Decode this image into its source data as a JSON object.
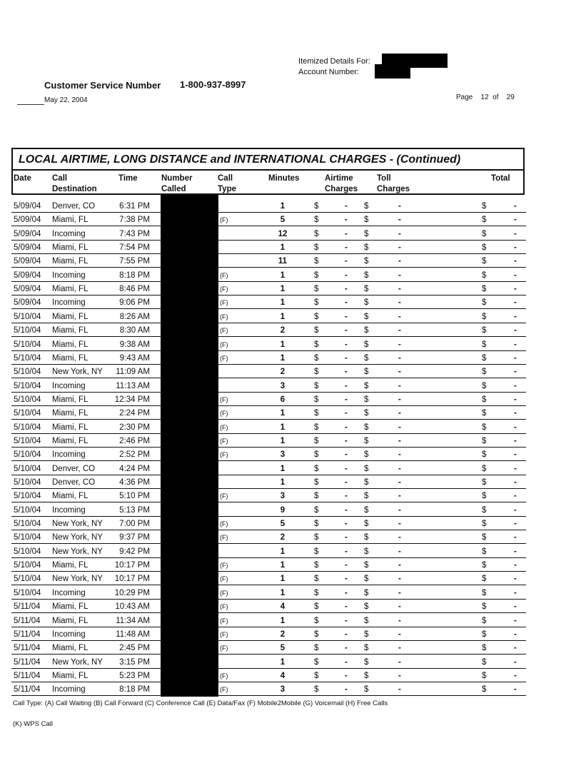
{
  "header": {
    "itemized_label": "Itemized Details For:",
    "account_label": "Account Number:",
    "cs_label": "Customer Service Number",
    "cs_number": "1-800-937-8997",
    "date": "May 22, 2004",
    "page_label": "Page",
    "page_num": "12",
    "page_of": "of",
    "page_total": "29"
  },
  "table": {
    "title": "LOCAL AIRTIME, LONG DISTANCE and INTERNATIONAL CHARGES  - (Continued)",
    "columns": [
      "Date",
      "Call\nDestination",
      "Time",
      "Number\nCalled",
      "Call\nType",
      "Minutes",
      "Airtime\nCharges",
      "Toll\nCharges",
      "Total"
    ],
    "currency": "$",
    "dash": "-",
    "rows": [
      [
        "5/09/04",
        "Denver, CO",
        "6:31 PM",
        "",
        "1"
      ],
      [
        "5/09/04",
        "Miami, FL",
        "7:38 PM",
        "(F)",
        "5"
      ],
      [
        "5/09/04",
        "Incoming",
        "7:43 PM",
        "",
        "12"
      ],
      [
        "5/09/04",
        "Miami, FL",
        "7:54 PM",
        "",
        "1"
      ],
      [
        "5/09/04",
        "Miami, FL",
        "7:55 PM",
        "",
        "11"
      ],
      [
        "5/09/04",
        "Incoming",
        "8:18 PM",
        "(F)",
        "1"
      ],
      [
        "5/09/04",
        "Miami, FL",
        "8:46 PM",
        "(F)",
        "1"
      ],
      [
        "5/09/04",
        "Incoming",
        "9:06 PM",
        "(F)",
        "1"
      ],
      [
        "5/10/04",
        "Miami, FL",
        "8:26 AM",
        "(F)",
        "1"
      ],
      [
        "5/10/04",
        "Miami, FL",
        "8:30 AM",
        "(F)",
        "2"
      ],
      [
        "5/10/04",
        "Miami, FL",
        "9:38 AM",
        "(F)",
        "1"
      ],
      [
        "5/10/04",
        "Miami, FL",
        "9:43 AM",
        "(F)",
        "1"
      ],
      [
        "5/10/04",
        "New York, NY",
        "11:09 AM",
        "",
        "2"
      ],
      [
        "5/10/04",
        "Incoming",
        "11:13 AM",
        "",
        "3"
      ],
      [
        "5/10/04",
        "Miami, FL",
        "12:34 PM",
        "(F)",
        "6"
      ],
      [
        "5/10/04",
        "Miami, FL",
        "2:24 PM",
        "(F)",
        "1"
      ],
      [
        "5/10/04",
        "Miami, FL",
        "2:30 PM",
        "(F)",
        "1"
      ],
      [
        "5/10/04",
        "Miami, FL",
        "2:46 PM",
        "(F)",
        "1"
      ],
      [
        "5/10/04",
        "Incoming",
        "2:52 PM",
        "(F)",
        "3"
      ],
      [
        "5/10/04",
        "Denver, CO",
        "4:24 PM",
        "",
        "1"
      ],
      [
        "5/10/04",
        "Denver, CO",
        "4:36 PM",
        "",
        "1"
      ],
      [
        "5/10/04",
        "Miami, FL",
        "5:10 PM",
        "(F)",
        "3"
      ],
      [
        "5/10/04",
        "Incoming",
        "5:13 PM",
        "",
        "9"
      ],
      [
        "5/10/04",
        "New York, NY",
        "7:00 PM",
        "(F)",
        "5"
      ],
      [
        "5/10/04",
        "New York, NY",
        "9:37 PM",
        "(F)",
        "2"
      ],
      [
        "5/10/04",
        "New York, NY",
        "9:42 PM",
        "",
        "1"
      ],
      [
        "5/10/04",
        "Miami, FL",
        "10:17 PM",
        "(F)",
        "1"
      ],
      [
        "5/10/04",
        "New York, NY",
        "10:17 PM",
        "(F)",
        "1"
      ],
      [
        "5/10/04",
        "Incoming",
        "10:29 PM",
        "(F)",
        "1"
      ],
      [
        "5/11/04",
        "Miami, FL",
        "10:43 AM",
        "(F)",
        "4"
      ],
      [
        "5/11/04",
        "Miami, FL",
        "11:34 AM",
        "(F)",
        "1"
      ],
      [
        "5/11/04",
        "Incoming",
        "11:48 AM",
        "(F)",
        "2"
      ],
      [
        "5/11/04",
        "Miami, FL",
        "2:45 PM",
        "(F)",
        "5"
      ],
      [
        "5/11/04",
        "New York, NY",
        "3:15 PM",
        "",
        "1"
      ],
      [
        "5/11/04",
        "Miami, FL",
        "5:23 PM",
        "(F)",
        "4"
      ],
      [
        "5/11/04",
        "Incoming",
        "8:18 PM",
        "(F)",
        "3"
      ]
    ]
  },
  "footer": {
    "legend": "Call Type: (A) Call Waiting (B) Call Forward (C) Conference Call (E) Data/Fax (F) Mobile2Mobile (G) Voicemail (H) Free Calls",
    "legend2": "(K) WPS Call"
  }
}
